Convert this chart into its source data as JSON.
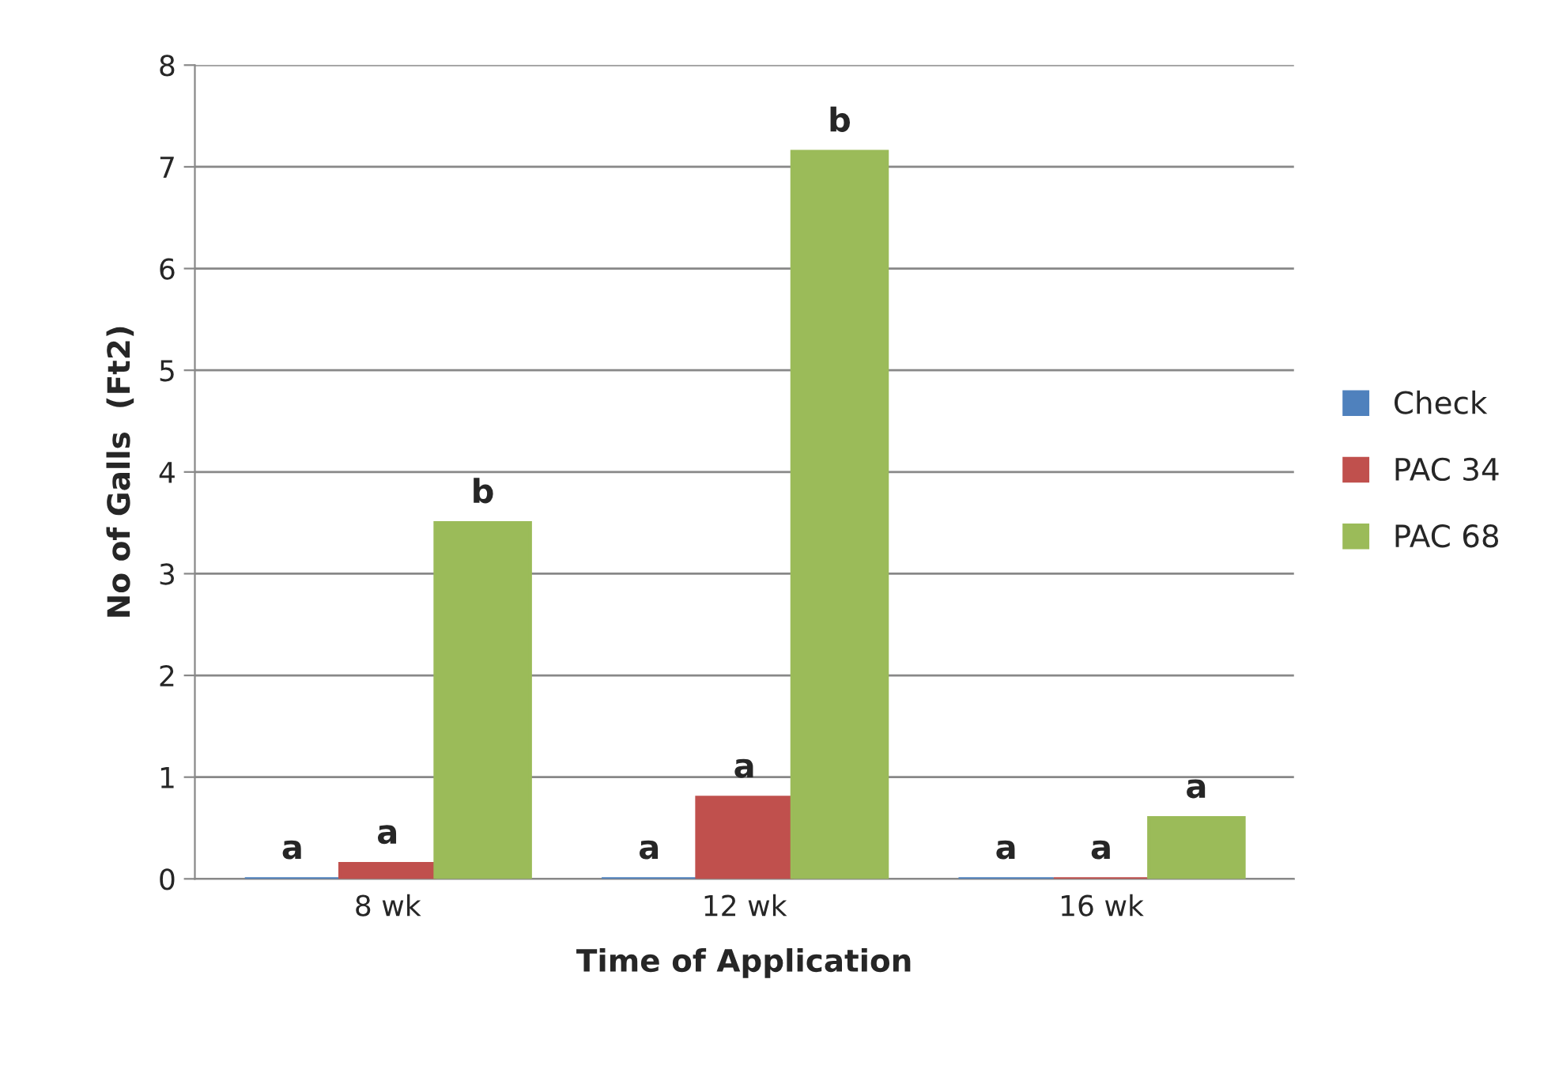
{
  "chart_data": {
    "type": "bar",
    "xlabel": "Time of Application",
    "ylabel": "No of Galls  (Ft2)",
    "categories": [
      "8 wk",
      "12 wk",
      "16 wk"
    ],
    "series": [
      {
        "name": "Check",
        "color": "#4f81bd",
        "values": [
          0,
          0,
          0
        ],
        "value_labels": [
          "a",
          "a",
          "a"
        ]
      },
      {
        "name": "PAC 34",
        "color": "#c0504d",
        "values": [
          0.15,
          0.8,
          0
        ],
        "value_labels": [
          "a",
          "a",
          "a"
        ]
      },
      {
        "name": "PAC 68",
        "color": "#9bbb59",
        "values": [
          3.5,
          7.15,
          0.6
        ],
        "value_labels": [
          "b",
          "b",
          "a"
        ]
      }
    ],
    "ylim": [
      0,
      8
    ],
    "yticks": [
      0,
      1,
      2,
      3,
      4,
      5,
      6,
      7,
      8
    ],
    "grid": "y",
    "legend": "right"
  }
}
